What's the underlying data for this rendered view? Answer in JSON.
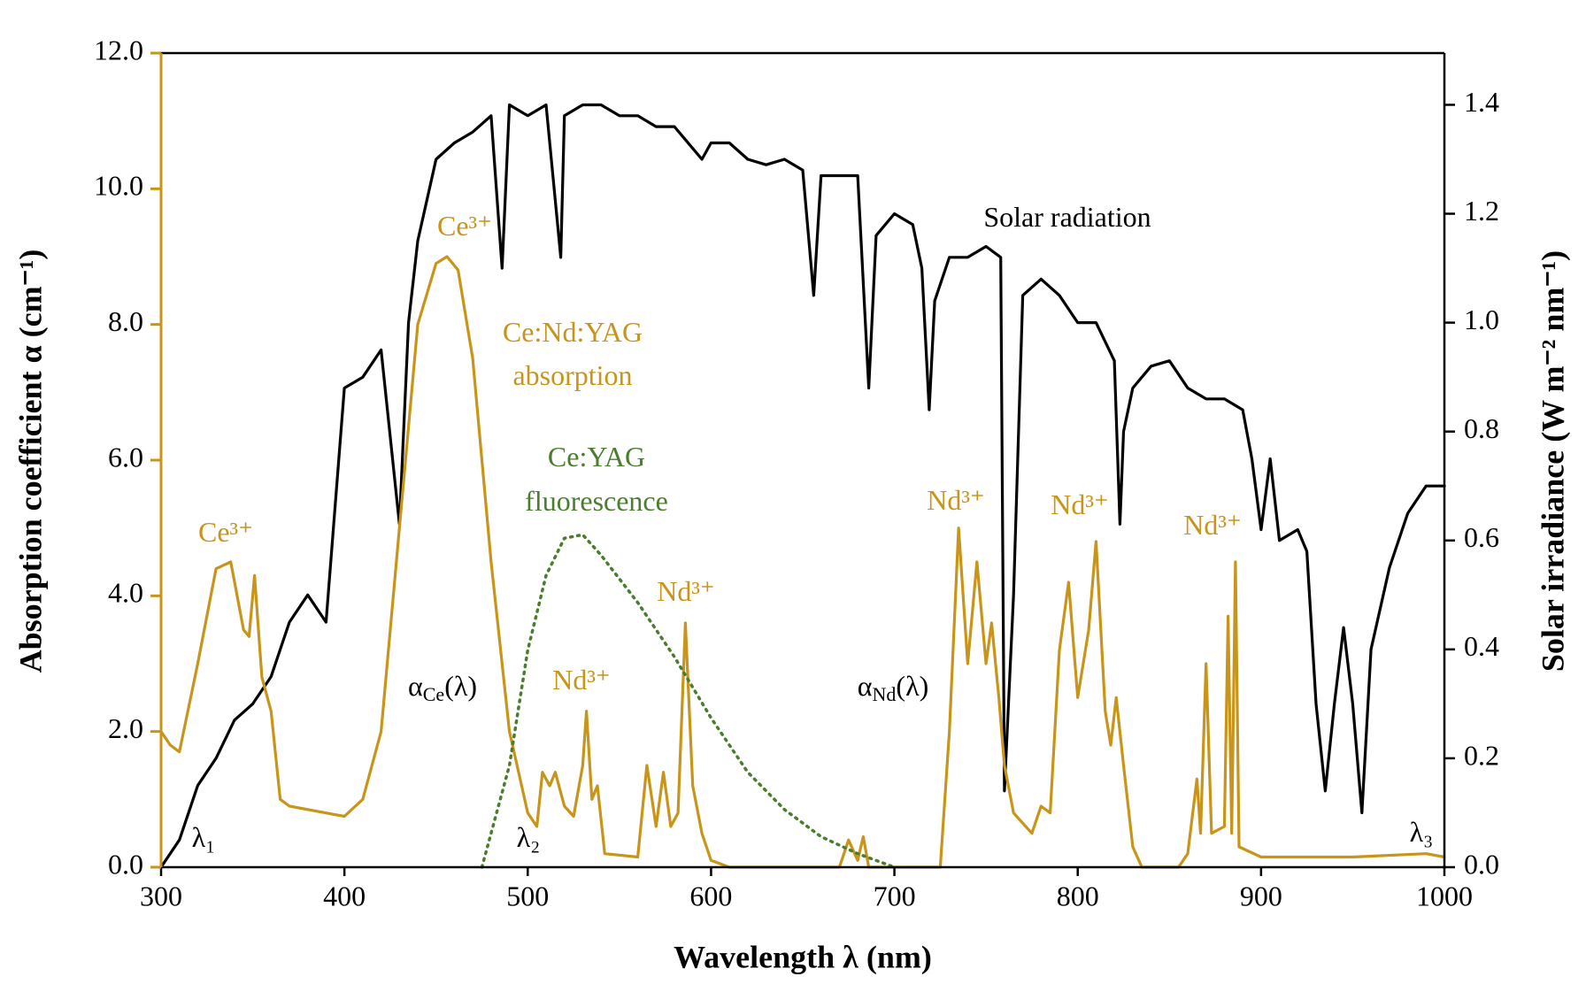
{
  "chart_data": {
    "type": "line",
    "xlabel": "Wavelength λ (nm)",
    "ylabel": "Absorption coefficient α (cm⁻¹)",
    "y2label": "Solar irradiance (W m⁻² nm⁻¹)",
    "xlim": [
      300,
      1000
    ],
    "xticks": [
      300,
      400,
      500,
      600,
      700,
      800,
      900,
      1000
    ],
    "ylim": [
      0,
      12
    ],
    "yticks": [
      {
        "value": 0,
        "label": "0.0"
      },
      {
        "value": 2,
        "label": "2.0"
      },
      {
        "value": 4,
        "label": "4.0"
      },
      {
        "value": 6,
        "label": "6.0"
      },
      {
        "value": 8,
        "label": "8.0"
      },
      {
        "value": 10,
        "label": "10.0"
      },
      {
        "value": 12,
        "label": "12.0"
      }
    ],
    "y2lim": [
      0,
      1.495
    ],
    "y2ticks": [
      {
        "value": 0,
        "label": "0.0"
      },
      0.2,
      0.4,
      0.6,
      0.8,
      {
        "value": 1,
        "label": "1.0"
      },
      1.2,
      1.4
    ],
    "ycolor": "#c8951a",
    "series": [
      {
        "color": "#000000",
        "axis": "y2",
        "style": "solid",
        "x": [
          300,
          310,
          320,
          330,
          340,
          350,
          360,
          370,
          380,
          390,
          400,
          410,
          420,
          430,
          435,
          440,
          450,
          460,
          470,
          480,
          486,
          490,
          500,
          510,
          518,
          520,
          530,
          540,
          550,
          560,
          570,
          580,
          590,
          595,
          600,
          610,
          620,
          630,
          640,
          650,
          656,
          660,
          670,
          680,
          686,
          690,
          700,
          710,
          715,
          719,
          722,
          730,
          740,
          750,
          758,
          760,
          765,
          770,
          780,
          790,
          800,
          810,
          820,
          823,
          825,
          830,
          840,
          850,
          860,
          870,
          880,
          890,
          895,
          900,
          905,
          910,
          920,
          925,
          930,
          935,
          940,
          945,
          950,
          955,
          960,
          970,
          980,
          990,
          1000
        ],
        "values": [
          0,
          0.05,
          0.15,
          0.2,
          0.27,
          0.3,
          0.35,
          0.45,
          0.5,
          0.45,
          0.88,
          0.9,
          0.95,
          0.63,
          1.0,
          1.15,
          1.3,
          1.33,
          1.35,
          1.38,
          1.1,
          1.4,
          1.38,
          1.4,
          1.12,
          1.38,
          1.4,
          1.4,
          1.38,
          1.38,
          1.36,
          1.36,
          1.32,
          1.3,
          1.33,
          1.33,
          1.3,
          1.29,
          1.3,
          1.28,
          1.05,
          1.27,
          1.27,
          1.27,
          0.88,
          1.16,
          1.2,
          1.18,
          1.1,
          0.84,
          1.04,
          1.12,
          1.12,
          1.14,
          1.12,
          0.14,
          0.5,
          1.05,
          1.08,
          1.05,
          1.0,
          1.0,
          0.93,
          0.63,
          0.8,
          0.88,
          0.92,
          0.93,
          0.88,
          0.86,
          0.86,
          0.84,
          0.75,
          0.62,
          0.75,
          0.6,
          0.62,
          0.58,
          0.3,
          0.14,
          0.3,
          0.44,
          0.3,
          0.1,
          0.4,
          0.55,
          0.65,
          0.7,
          0.7
        ]
      },
      {
        "color": "#c8951a",
        "style": "solid",
        "x": [
          300,
          305,
          310,
          320,
          330,
          338,
          345,
          348,
          351,
          355,
          360,
          365,
          370,
          390,
          400,
          410,
          420,
          430,
          440,
          450,
          456,
          462,
          470,
          480,
          490,
          500,
          505,
          508,
          512,
          515,
          520,
          525,
          530,
          532,
          535,
          538,
          542,
          560,
          565,
          570,
          574,
          578,
          582,
          586,
          590,
          595,
          600,
          610,
          670,
          675,
          680,
          683,
          686,
          725,
          730,
          735,
          740,
          745,
          750,
          753,
          757,
          760,
          765,
          775,
          780,
          785,
          790,
          795,
          800,
          806,
          810,
          815,
          818,
          821,
          825,
          830,
          835,
          855,
          860,
          865,
          867,
          870,
          873,
          880,
          882,
          884,
          886,
          888,
          900,
          950,
          990,
          1000
        ],
        "values": [
          2.0,
          1.8,
          1.7,
          3.0,
          4.4,
          4.5,
          3.5,
          3.4,
          4.3,
          2.8,
          2.3,
          1.0,
          0.9,
          0.8,
          0.75,
          1.0,
          2.0,
          5.0,
          8.0,
          8.9,
          9.0,
          8.8,
          7.5,
          4.5,
          2.0,
          0.8,
          0.6,
          1.4,
          1.2,
          1.4,
          0.9,
          0.75,
          1.5,
          2.3,
          1.0,
          1.2,
          0.2,
          0.15,
          1.5,
          0.6,
          1.4,
          0.6,
          0.8,
          3.6,
          1.2,
          0.5,
          0.1,
          0,
          0,
          0.4,
          0.1,
          0.45,
          0,
          0,
          2.0,
          5.0,
          3.0,
          4.5,
          3.0,
          3.6,
          2.5,
          1.5,
          0.8,
          0.5,
          0.9,
          0.8,
          3.2,
          4.2,
          2.5,
          3.5,
          4.8,
          2.3,
          1.8,
          2.5,
          1.5,
          0.3,
          0,
          0,
          0.2,
          1.3,
          0.5,
          3.0,
          0.5,
          0.6,
          3.7,
          0.5,
          4.5,
          0.3,
          0.15,
          0.15,
          0.2,
          0.15
        ]
      },
      {
        "color": "#4a7d2e",
        "style": "dotted",
        "x": [
          475,
          490,
          500,
          510,
          520,
          530,
          540,
          560,
          580,
          600,
          620,
          640,
          660,
          680,
          700
        ],
        "values": [
          0,
          1.5,
          3.2,
          4.3,
          4.85,
          4.9,
          4.6,
          3.9,
          3.1,
          2.2,
          1.4,
          0.85,
          0.45,
          0.2,
          0
        ]
      }
    ],
    "annotations": [
      {
        "text": "Solar radiation",
        "color": "#000000"
      },
      {
        "text": "Ce³⁺",
        "color": "#c8951a"
      },
      {
        "text": "Ce:Nd:YAG",
        "color": "#c8951a"
      },
      {
        "text": "absorption",
        "color": "#c8951a"
      },
      {
        "text": "Ce:YAG",
        "color": "#4a7d2e"
      },
      {
        "text": "fluorescence",
        "color": "#4a7d2e"
      },
      {
        "text": "Ce³⁺",
        "color": "#c8951a"
      },
      {
        "text": "Nd³⁺",
        "color": "#c8951a"
      },
      {
        "text": "Nd³⁺",
        "color": "#c8951a"
      },
      {
        "text": "Nd³⁺",
        "color": "#c8951a"
      },
      {
        "text": "Nd³⁺",
        "color": "#c8951a"
      },
      {
        "text": "Nd³⁺",
        "color": "#c8951a"
      },
      {
        "text": "α",
        "sub": "Ce",
        "tail": "(λ)",
        "color": "#000000"
      },
      {
        "text": "α",
        "sub": "Nd",
        "tail": "(λ)",
        "color": "#000000"
      },
      {
        "text": "λ₁",
        "color": "#000000"
      },
      {
        "text": "λ₂",
        "color": "#000000"
      },
      {
        "text": "λ₃",
        "color": "#000000"
      }
    ]
  }
}
